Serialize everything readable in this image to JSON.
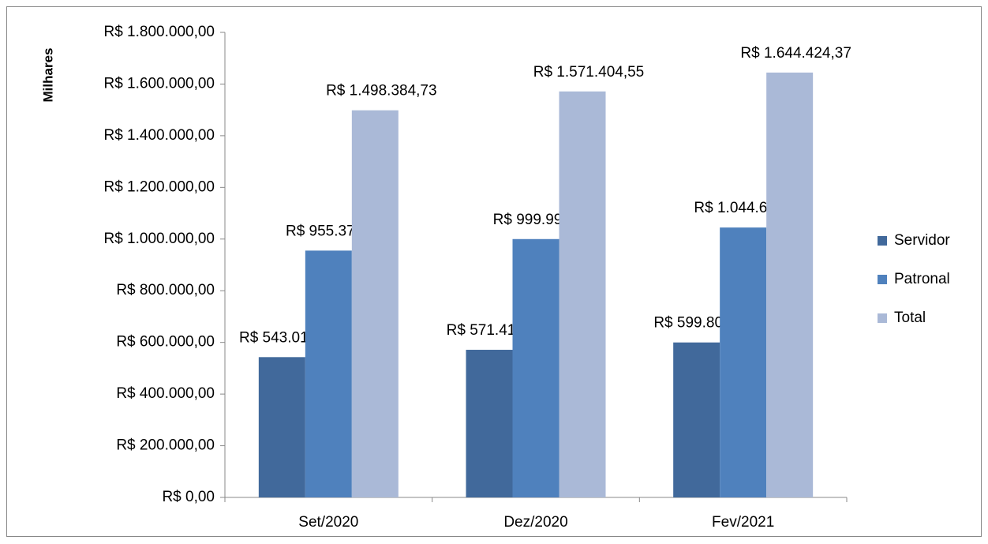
{
  "chart_data": {
    "type": "bar",
    "y_axis_label": "Milhares",
    "categories": [
      "Set/2020",
      "Dez/2020",
      "Fev/2021"
    ],
    "series": [
      {
        "name": "Servidor",
        "color": "#41699b",
        "values": [
          543014.21,
          571410.8,
          599807.4
        ],
        "value_labels": [
          "R$ 543.014,21",
          "R$ 571.410,80",
          "R$ 599.807,40"
        ]
      },
      {
        "name": "Patronal",
        "color": "#4f81bd",
        "values": [
          955370.52,
          999993.75,
          1044616.97
        ],
        "value_labels": [
          "R$ 955.370,52",
          "R$ 999.993,75",
          "R$ 1.044.616,97"
        ]
      },
      {
        "name": "Total",
        "color": "#aab9d7",
        "values": [
          1498384.73,
          1571404.55,
          1644424.37
        ],
        "value_labels": [
          "R$ 1.498.384,73",
          "R$ 1.571.404,55",
          "R$ 1.644.424,37"
        ]
      }
    ],
    "ylim": [
      0,
      1800000
    ],
    "yticks": [
      {
        "value": 0,
        "label": "R$ 0,00"
      },
      {
        "value": 200000,
        "label": "R$ 200.000,00"
      },
      {
        "value": 400000,
        "label": "R$ 400.000,00"
      },
      {
        "value": 600000,
        "label": "R$ 600.000,00"
      },
      {
        "value": 800000,
        "label": "R$ 800.000,00"
      },
      {
        "value": 1000000,
        "label": "R$ 1.000.000,00"
      },
      {
        "value": 1200000,
        "label": "R$ 1.200.000,00"
      },
      {
        "value": 1400000,
        "label": "R$ 1.400.000,00"
      },
      {
        "value": 1600000,
        "label": "R$ 1.600.000,00"
      },
      {
        "value": 1800000,
        "label": "R$ 1.800.000,00"
      }
    ],
    "grid": false,
    "legend": "right"
  }
}
